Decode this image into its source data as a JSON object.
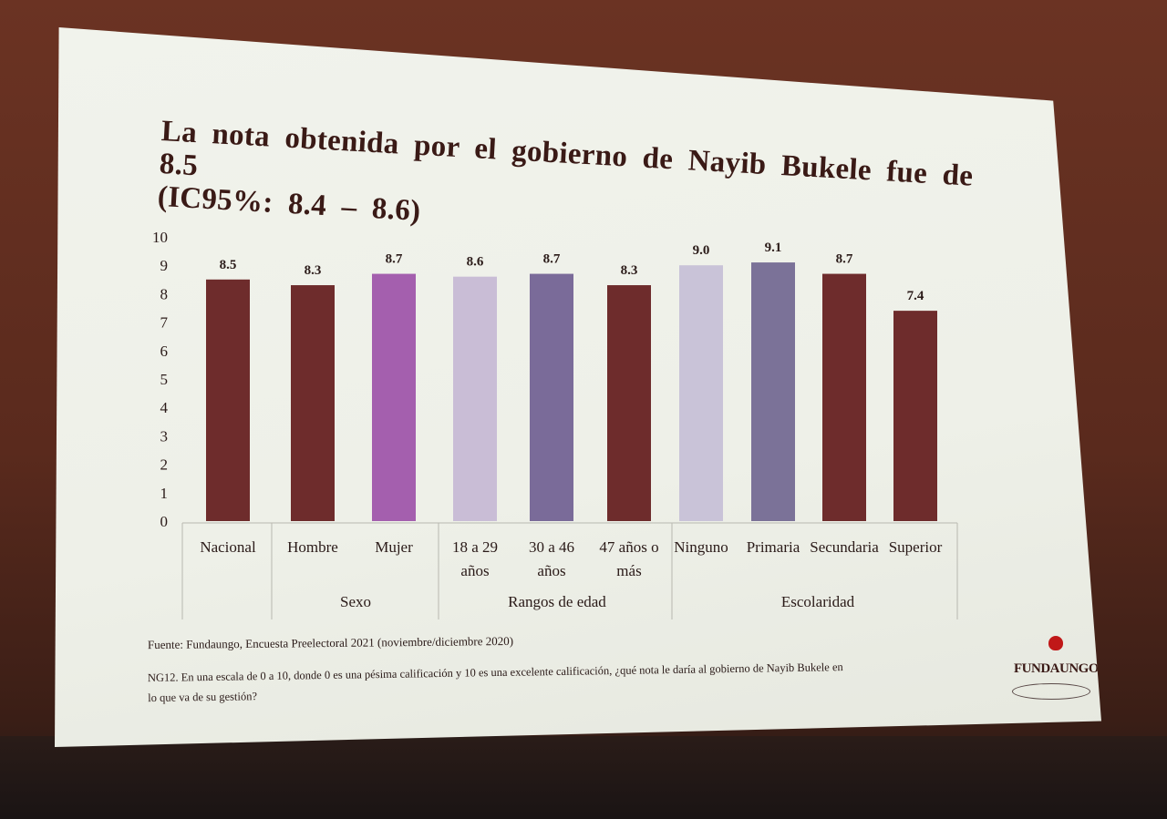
{
  "chart_data": {
    "type": "bar",
    "title_lines": [
      "La nota obtenida por el gobierno de Nayib Bukele fue de 8.5",
      "(IC95%: 8.4 – 8.6)"
    ],
    "ylim": [
      0,
      10
    ],
    "yticks": [
      "0",
      "1",
      "2",
      "3",
      "4",
      "5",
      "6",
      "7",
      "8",
      "9",
      "10"
    ],
    "bars": [
      {
        "category": [
          "Nacional"
        ],
        "value": 8.5,
        "label": "8.5",
        "color": "#6e2c2c"
      },
      {
        "category": [
          "Hombre"
        ],
        "value": 8.3,
        "label": "8.3",
        "color": "#6e2c2c"
      },
      {
        "category": [
          "Mujer"
        ],
        "value": 8.7,
        "label": "8.7",
        "color": "#a45fae"
      },
      {
        "category": [
          "18 a 29",
          "años"
        ],
        "value": 8.6,
        "label": "8.6",
        "color": "#c9bdd6"
      },
      {
        "category": [
          "30 a 46",
          "años"
        ],
        "value": 8.7,
        "label": "8.7",
        "color": "#7a6b99"
      },
      {
        "category": [
          "47 años o",
          "más"
        ],
        "value": 8.3,
        "label": "8.3",
        "color": "#6e2c2c"
      },
      {
        "category": [
          "Ninguno"
        ],
        "value": 9.0,
        "label": "9.0",
        "color": "#c9c3d8"
      },
      {
        "category": [
          "Primaria"
        ],
        "value": 9.1,
        "label": "9.1",
        "color": "#7b7298"
      },
      {
        "category": [
          "Secundaria"
        ],
        "value": 8.7,
        "label": "8.7",
        "color": "#6e2c2c"
      },
      {
        "category": [
          "Superior"
        ],
        "value": 7.4,
        "label": "7.4",
        "color": "#6e2c2c"
      }
    ],
    "groups": [
      {
        "label": "Sexo"
      },
      {
        "label": "Rangos de edad"
      },
      {
        "label": "Escolaridad"
      }
    ],
    "xlabel": "",
    "ylabel": "",
    "legend": "none",
    "grid": false
  },
  "footer": {
    "source": "Fuente: Fundaungo, Encuesta Preelectoral 2021 (noviembre/diciembre 2020)",
    "question_line1": "NG12. En una escala de 0 a 10, donde 0 es una pésima calificación y 10 es una excelente calificación, ¿qué nota le daría al gobierno de Nayib Bukele en",
    "question_line2": "lo que va de su gestión?"
  },
  "logo": {
    "text": "FUNDAUNGO",
    "icon": "rose-icon"
  }
}
